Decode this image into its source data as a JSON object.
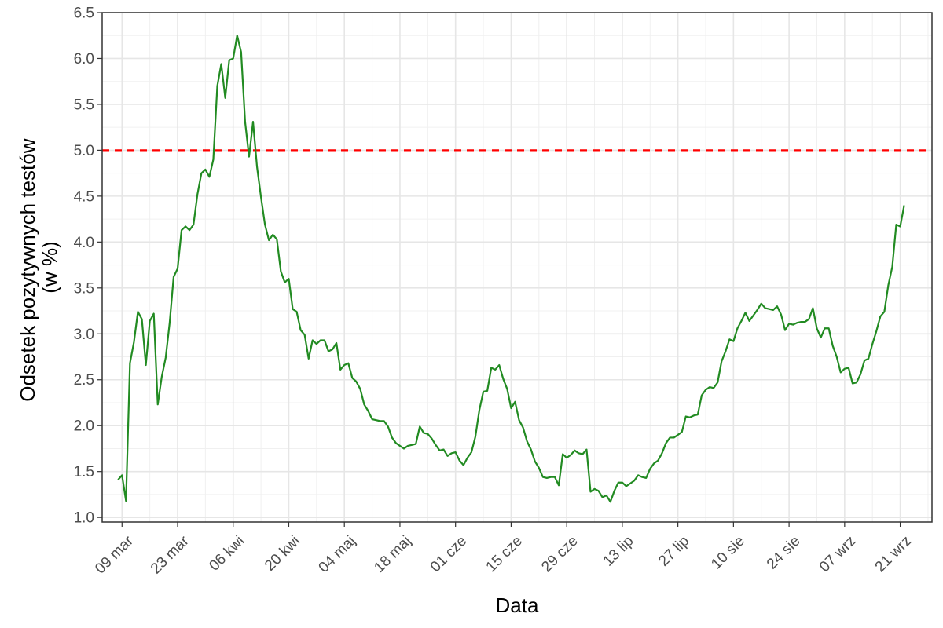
{
  "chart_data": {
    "type": "line",
    "title": "",
    "xlabel": "Data",
    "ylabel": [
      "Odsetek pozytywnych testów",
      "(w %)"
    ],
    "ylim": [
      0.95,
      6.5
    ],
    "xlim": [
      "2020-03-04",
      "2020-09-29"
    ],
    "y_ticks": [
      1.0,
      1.5,
      2.0,
      2.5,
      3.0,
      3.5,
      4.0,
      4.5,
      5.0,
      5.5,
      6.0,
      6.5
    ],
    "y_tick_labels": [
      "1.0",
      "1.5",
      "2.0",
      "2.5",
      "3.0",
      "3.5",
      "4.0",
      "4.5",
      "5.0",
      "5.5",
      "6.0",
      "6.5"
    ],
    "x_ticks": [
      "2020-03-09",
      "2020-03-23",
      "2020-04-06",
      "2020-04-20",
      "2020-05-04",
      "2020-05-18",
      "2020-06-01",
      "2020-06-15",
      "2020-06-29",
      "2020-07-13",
      "2020-07-27",
      "2020-08-10",
      "2020-08-24",
      "2020-09-07",
      "2020-09-21"
    ],
    "x_tick_labels": [
      "09 mar",
      "23 mar",
      "06 kwi",
      "20 kwi",
      "04 maj",
      "18 maj",
      "01 cze",
      "15 cze",
      "29 cze",
      "13 lip",
      "27 lip",
      "10 sie",
      "24 sie",
      "07 wrz",
      "21 wrz"
    ],
    "grid": true,
    "reference_line": {
      "y": 5.0,
      "color": "#ff0000",
      "style": "dashed"
    },
    "series": [
      {
        "color": "#228b22",
        "x": [
          "2020-03-08",
          "2020-03-09",
          "2020-03-10",
          "2020-03-11",
          "2020-03-12",
          "2020-03-13",
          "2020-03-14",
          "2020-03-15",
          "2020-03-16",
          "2020-03-17",
          "2020-03-18",
          "2020-03-19",
          "2020-03-20",
          "2020-03-21",
          "2020-03-22",
          "2020-03-23",
          "2020-03-24",
          "2020-03-25",
          "2020-03-26",
          "2020-03-27",
          "2020-03-28",
          "2020-03-29",
          "2020-03-30",
          "2020-03-31",
          "2020-04-01",
          "2020-04-02",
          "2020-04-03",
          "2020-04-04",
          "2020-04-05",
          "2020-04-06",
          "2020-04-07",
          "2020-04-08",
          "2020-04-09",
          "2020-04-10",
          "2020-04-11",
          "2020-04-12",
          "2020-04-13",
          "2020-04-14",
          "2020-04-15",
          "2020-04-16",
          "2020-04-17",
          "2020-04-18",
          "2020-04-19",
          "2020-04-20",
          "2020-04-21",
          "2020-04-22",
          "2020-04-23",
          "2020-04-24",
          "2020-04-25",
          "2020-04-26",
          "2020-04-27",
          "2020-04-28",
          "2020-04-29",
          "2020-04-30",
          "2020-05-01",
          "2020-05-02",
          "2020-05-03",
          "2020-05-04",
          "2020-05-05",
          "2020-05-06",
          "2020-05-07",
          "2020-05-08",
          "2020-05-09",
          "2020-05-10",
          "2020-05-11",
          "2020-05-12",
          "2020-05-13",
          "2020-05-14",
          "2020-05-15",
          "2020-05-16",
          "2020-05-17",
          "2020-05-18",
          "2020-05-19",
          "2020-05-20",
          "2020-05-21",
          "2020-05-22",
          "2020-05-23",
          "2020-05-24",
          "2020-05-25",
          "2020-05-26",
          "2020-05-27",
          "2020-05-28",
          "2020-05-29",
          "2020-05-30",
          "2020-05-31",
          "2020-06-01",
          "2020-06-02",
          "2020-06-03",
          "2020-06-04",
          "2020-06-05",
          "2020-06-06",
          "2020-06-07",
          "2020-06-08",
          "2020-06-09",
          "2020-06-10",
          "2020-06-11",
          "2020-06-12",
          "2020-06-13",
          "2020-06-14",
          "2020-06-15",
          "2020-06-16",
          "2020-06-17",
          "2020-06-18",
          "2020-06-19",
          "2020-06-20",
          "2020-06-21",
          "2020-06-22",
          "2020-06-23",
          "2020-06-24",
          "2020-06-25",
          "2020-06-26",
          "2020-06-27",
          "2020-06-28",
          "2020-06-29",
          "2020-06-30",
          "2020-07-01",
          "2020-07-02",
          "2020-07-03",
          "2020-07-04",
          "2020-07-05",
          "2020-07-06",
          "2020-07-07",
          "2020-07-08",
          "2020-07-09",
          "2020-07-10",
          "2020-07-11",
          "2020-07-12",
          "2020-07-13",
          "2020-07-14",
          "2020-07-15",
          "2020-07-16",
          "2020-07-17",
          "2020-07-18",
          "2020-07-19",
          "2020-07-20",
          "2020-07-21",
          "2020-07-22",
          "2020-07-23",
          "2020-07-24",
          "2020-07-25",
          "2020-07-26",
          "2020-07-27",
          "2020-07-28",
          "2020-07-29",
          "2020-07-30",
          "2020-07-31",
          "2020-08-01",
          "2020-08-02",
          "2020-08-03",
          "2020-08-04",
          "2020-08-05",
          "2020-08-06",
          "2020-08-07",
          "2020-08-08",
          "2020-08-09",
          "2020-08-10",
          "2020-08-11",
          "2020-08-12",
          "2020-08-13",
          "2020-08-14",
          "2020-08-15",
          "2020-08-16",
          "2020-08-17",
          "2020-08-18",
          "2020-08-19",
          "2020-08-20",
          "2020-08-21",
          "2020-08-22",
          "2020-08-23",
          "2020-08-24",
          "2020-08-25",
          "2020-08-26",
          "2020-08-27",
          "2020-08-28",
          "2020-08-29",
          "2020-08-30",
          "2020-08-31",
          "2020-09-01",
          "2020-09-02",
          "2020-09-03",
          "2020-09-04",
          "2020-09-05",
          "2020-09-06",
          "2020-09-07",
          "2020-09-08",
          "2020-09-09",
          "2020-09-10",
          "2020-09-11",
          "2020-09-12",
          "2020-09-13",
          "2020-09-14",
          "2020-09-15",
          "2020-09-16",
          "2020-09-17",
          "2020-09-18",
          "2020-09-19",
          "2020-09-20",
          "2020-09-21",
          "2020-09-22"
        ],
        "y": [
          1.41,
          1.46,
          1.18,
          2.68,
          2.91,
          3.24,
          3.16,
          2.66,
          3.14,
          3.22,
          2.23,
          2.53,
          2.74,
          3.12,
          3.62,
          3.71,
          4.13,
          4.17,
          4.13,
          4.19,
          4.52,
          4.75,
          4.79,
          4.71,
          4.9,
          5.7,
          5.94,
          5.57,
          5.98,
          6.0,
          6.25,
          6.07,
          5.31,
          4.93,
          5.31,
          4.82,
          4.49,
          4.19,
          4.02,
          4.08,
          4.03,
          3.68,
          3.56,
          3.6,
          3.27,
          3.24,
          3.04,
          2.99,
          2.73,
          2.93,
          2.89,
          2.93,
          2.93,
          2.81,
          2.83,
          2.9,
          2.61,
          2.66,
          2.68,
          2.52,
          2.48,
          2.4,
          2.23,
          2.16,
          2.07,
          2.06,
          2.05,
          2.05,
          1.99,
          1.87,
          1.81,
          1.78,
          1.75,
          1.78,
          1.79,
          1.8,
          1.99,
          1.92,
          1.91,
          1.86,
          1.79,
          1.73,
          1.74,
          1.67,
          1.7,
          1.71,
          1.62,
          1.57,
          1.65,
          1.71,
          1.88,
          2.17,
          2.37,
          2.38,
          2.63,
          2.61,
          2.66,
          2.51,
          2.4,
          2.19,
          2.26,
          2.06,
          1.98,
          1.83,
          1.74,
          1.61,
          1.54,
          1.44,
          1.43,
          1.44,
          1.44,
          1.35,
          1.69,
          1.65,
          1.68,
          1.73,
          1.7,
          1.69,
          1.74,
          1.28,
          1.31,
          1.29,
          1.22,
          1.24,
          1.17,
          1.29,
          1.38,
          1.38,
          1.34,
          1.37,
          1.4,
          1.46,
          1.44,
          1.43,
          1.53,
          1.59,
          1.62,
          1.7,
          1.81,
          1.87,
          1.87,
          1.9,
          1.93,
          2.1,
          2.09,
          2.11,
          2.12,
          2.33,
          2.39,
          2.42,
          2.41,
          2.47,
          2.7,
          2.81,
          2.94,
          2.92,
          3.06,
          3.14,
          3.23,
          3.14,
          3.2,
          3.26,
          3.33,
          3.28,
          3.27,
          3.26,
          3.3,
          3.21,
          3.04,
          3.11,
          3.1,
          3.12,
          3.13,
          3.13,
          3.16,
          3.28,
          3.06,
          2.96,
          3.06,
          3.06,
          2.87,
          2.75,
          2.58,
          2.62,
          2.63,
          2.46,
          2.47,
          2.56,
          2.71,
          2.73,
          2.89,
          3.03,
          3.19,
          3.24,
          3.53,
          3.73,
          4.19,
          4.17,
          4.4
        ]
      }
    ]
  }
}
